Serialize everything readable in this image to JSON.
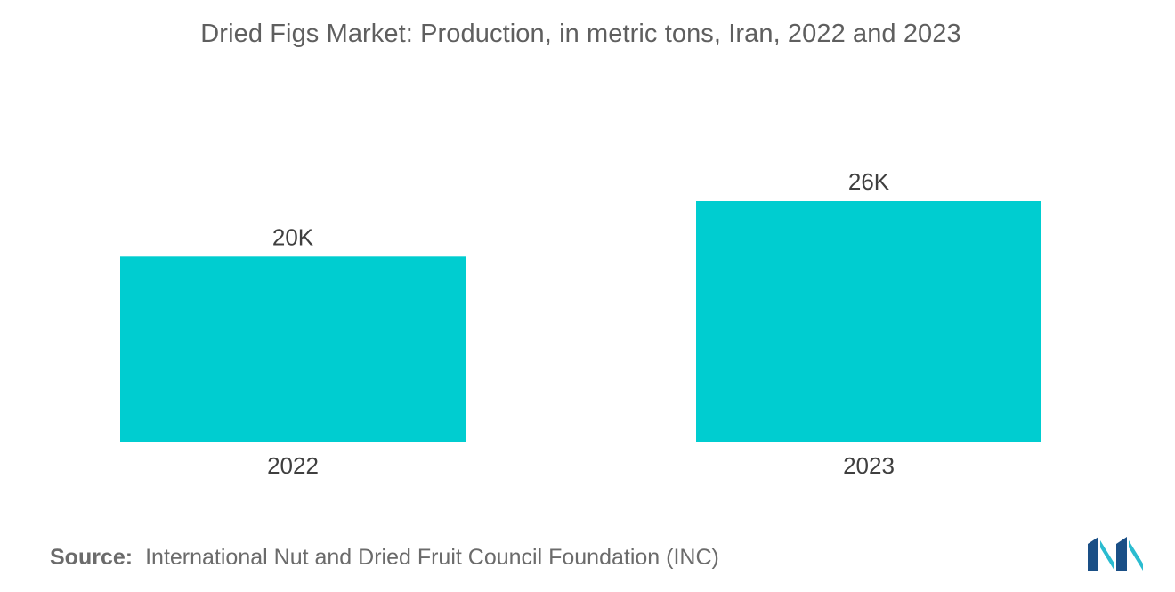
{
  "chart_data": {
    "type": "bar",
    "title": "Dried Figs Market: Production, in metric tons, Iran, 2022 and 2023",
    "categories": [
      "2022",
      "2023"
    ],
    "values": [
      20000,
      26000
    ],
    "data_labels": [
      "20K",
      "26K"
    ],
    "xlabel": "",
    "ylabel": "",
    "ylim": [
      0,
      26000
    ],
    "grid": false,
    "legend": "none",
    "bar_color": "#00cdd0"
  },
  "source": {
    "label": "Source:",
    "text": "International Nut and Dried Fruit Council Foundation (INC)"
  },
  "logo": {
    "icon": "mordor-intelligence-logo-icon",
    "colors": [
      "#1a4f86",
      "#2bbcd0"
    ]
  }
}
